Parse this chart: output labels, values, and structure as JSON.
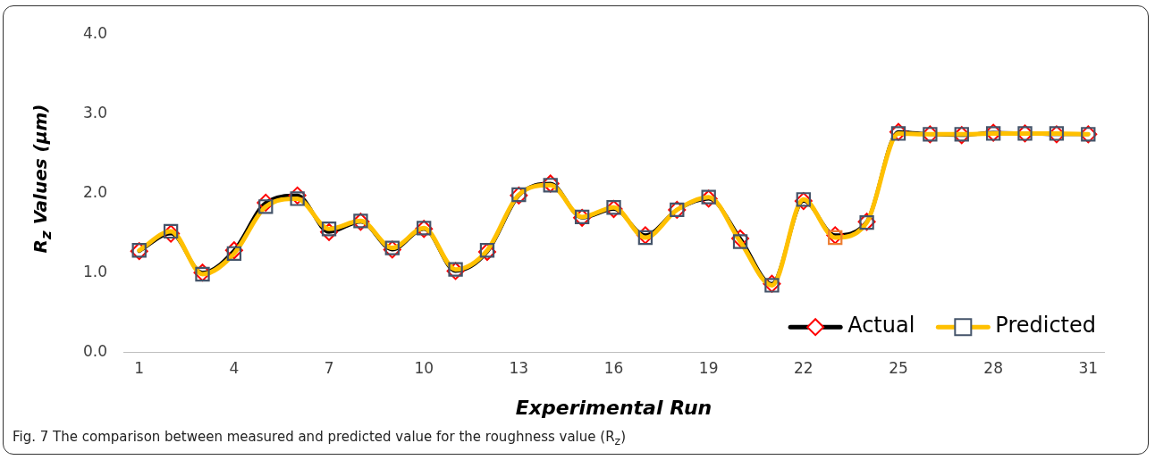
{
  "chart_data": {
    "type": "line",
    "xlabel": "Experimental Run",
    "ylabel": "R$_{z}$ Values (µm)",
    "categories": [
      "1",
      null,
      null,
      "4",
      null,
      null,
      "7",
      null,
      null,
      "10",
      null,
      null,
      "13",
      null,
      null,
      "16",
      null,
      null,
      "19",
      null,
      null,
      "22",
      null,
      null,
      "25",
      null,
      null,
      "28",
      null,
      null,
      "31"
    ],
    "series": [
      {
        "name": "Actual",
        "color": "#000000",
        "marker": "diamond",
        "colors": [
          "#ff0000",
          "#ff0000",
          "#ff0000",
          "#ff0000",
          "#ff0000",
          "#ff0000",
          "#ff0000",
          "#ff0000",
          "#ff0000",
          "#ff0000",
          "#ff0000",
          "#ff0000",
          "#ff0000",
          "#ff0000",
          "#ff0000",
          "#ff0000",
          "#ff0000",
          "#ff0000",
          "#ff0000",
          "#ff0000",
          "#ff0000",
          "#ff0000",
          "#ff0000",
          "#ff0000",
          "#ff0000",
          "#ff0000",
          "#ff0000",
          "#ff0000",
          "#ff0000",
          "#ff0000",
          "#ff0000"
        ],
        "values": [
          1.27,
          1.49,
          1.0,
          1.28,
          1.88,
          1.97,
          1.51,
          1.64,
          1.29,
          1.55,
          1.02,
          1.26,
          1.97,
          2.12,
          1.69,
          1.8,
          1.47,
          1.79,
          1.93,
          1.43,
          0.86,
          1.9,
          1.47,
          1.64,
          2.77,
          2.74,
          2.73,
          2.76,
          2.75,
          2.74,
          2.74
        ]
      },
      {
        "name": "Predicted",
        "color": "#ffc000",
        "marker": "square",
        "colors": [
          "#44546a",
          "#44546a",
          "#44546a",
          "#44546a",
          "#44546a",
          "#44546a",
          "#44546a",
          "#44546a",
          "#44546a",
          "#44546a",
          "#44546a",
          "#44546a",
          "#44546a",
          "#44546a",
          "#44546a",
          "#44546a",
          "#44546a",
          "#44546a",
          "#44546a",
          "#44546a",
          "#44546a",
          "#44546a",
          "#ed7d31",
          "#44546a",
          "#44546a",
          "#44546a",
          "#44546a",
          "#44546a",
          "#44546a",
          "#44546a",
          "#44546a"
        ],
        "values": [
          1.28,
          1.52,
          0.98,
          1.24,
          1.83,
          1.93,
          1.55,
          1.65,
          1.31,
          1.56,
          1.04,
          1.28,
          1.98,
          2.1,
          1.7,
          1.82,
          1.44,
          1.79,
          1.95,
          1.39,
          0.84,
          1.92,
          1.44,
          1.63,
          2.75,
          2.74,
          2.74,
          2.75,
          2.75,
          2.75,
          2.74
        ]
      }
    ],
    "ylim": [
      0,
      4
    ],
    "yticks": [
      {
        "value": 0,
        "label": "0.0"
      },
      {
        "value": 1,
        "label": "1.0"
      },
      {
        "value": 2,
        "label": "2.0"
      },
      {
        "value": 3,
        "label": "3.0"
      },
      {
        "value": 4,
        "label": "4.0"
      }
    ],
    "grid": false,
    "legend": "bottom right",
    "annotations": [
      "Fig. 7 The comparison between measured and predicted value for the roughness value (R$_{z}$)"
    ]
  }
}
